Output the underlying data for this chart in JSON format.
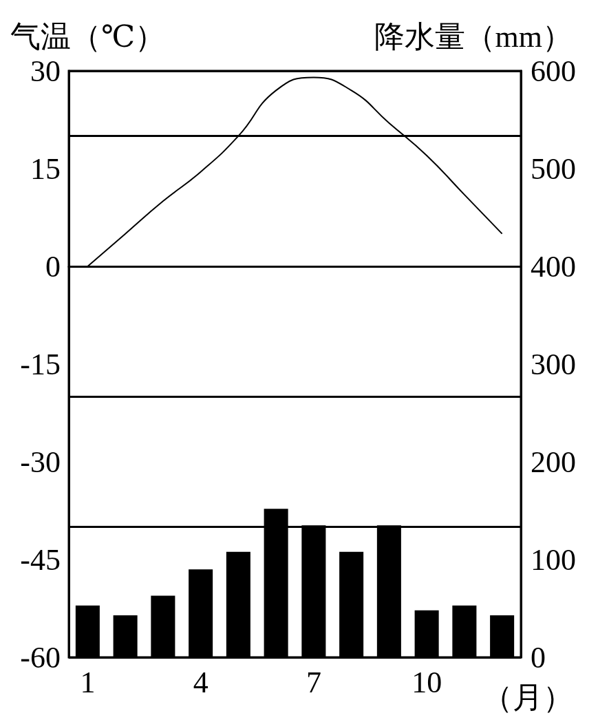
{
  "chart_data": {
    "type": "bar",
    "categories": [
      "1",
      null,
      null,
      "4",
      null,
      null,
      "7",
      null,
      null,
      "10",
      null,
      null
    ],
    "xlabel": "（月）",
    "ylabel": "气温（℃）",
    "y2label": "降水量（mm）",
    "series": [
      {
        "axis": "y2",
        "color": "#000000",
        "values": [
          53,
          43,
          63,
          90,
          108,
          152,
          135,
          108,
          135,
          48,
          53,
          43
        ]
      },
      {
        "type": "line",
        "axis": "y",
        "color": "#000000",
        "marker": "none",
        "values": [
          0,
          5,
          10,
          14.5,
          20,
          27,
          29,
          27,
          22,
          17,
          11,
          5
        ]
      }
    ],
    "ylim": [
      -60,
      30
    ],
    "yticks": [
      -60,
      -45,
      -30,
      -15,
      0,
      15,
      30
    ],
    "y2lim": [
      0,
      600
    ],
    "y2ticks": [
      0,
      100,
      200,
      300,
      400,
      500,
      600
    ],
    "grid": "y"
  }
}
